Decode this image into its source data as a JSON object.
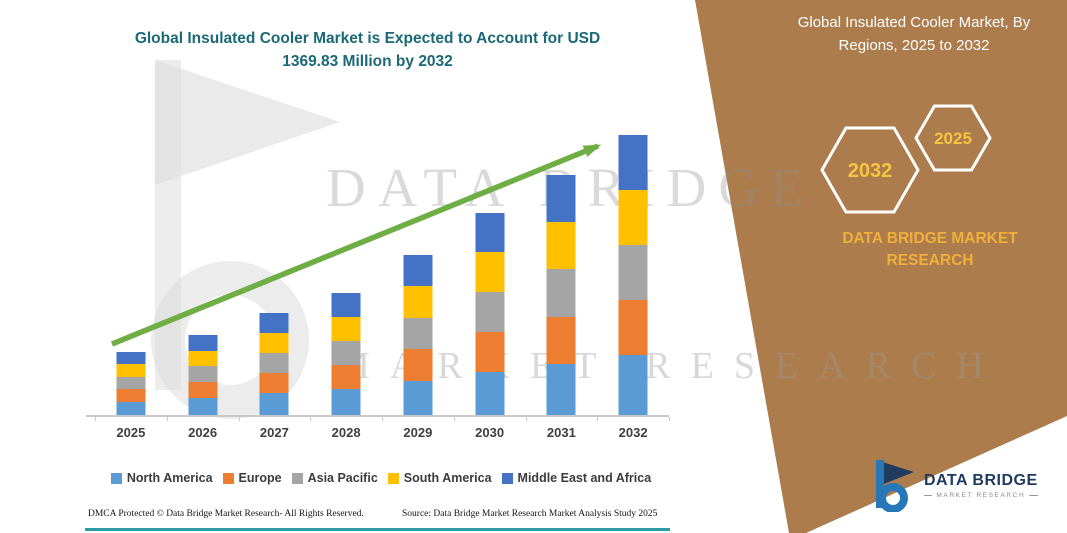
{
  "page": {
    "title": "Global Insulated Cooler Market is Expected to Account for USD 1369.83 Million by 2032"
  },
  "side_panel": {
    "heading": "Global Insulated Cooler Market, By Regions, 2025 to 2032",
    "hexagons": [
      {
        "label": "2032"
      },
      {
        "label": "2025"
      }
    ],
    "brand_text": "DATA BRIDGE MARKET RESEARCH",
    "panel_color": "#ac7c4c",
    "hex_text_color": "#f7c440"
  },
  "watermark": {
    "line1": "DATA BRIDGE",
    "line2": "MARKET RESEARCH"
  },
  "chart_data": {
    "type": "bar",
    "stacked": true,
    "title": "Global Insulated Cooler Market, By Regions, 2025 to 2032",
    "unit": "USD Million",
    "categories": [
      "2025",
      "2026",
      "2027",
      "2028",
      "2029",
      "2030",
      "2031",
      "2032"
    ],
    "series": [
      {
        "name": "North America",
        "color": "#5B9BD5",
        "values": [
          66,
          84,
          107,
          128,
          168,
          211,
          251,
          293.83
        ]
      },
      {
        "name": "Europe",
        "color": "#ED7D31",
        "values": [
          60,
          77,
          98,
          117,
          153,
          194,
          230,
          269
        ]
      },
      {
        "name": "Asia Pacific",
        "color": "#A5A5A5",
        "values": [
          61,
          77,
          99,
          118,
          155,
          196,
          233,
          271
        ]
      },
      {
        "name": "South America",
        "color": "#FFC000",
        "values": [
          60,
          77,
          98,
          117,
          153,
          194,
          230,
          268
        ]
      },
      {
        "name": "Middle East and Africa",
        "color": "#4472C4",
        "values": [
          61,
          76,
          97,
          117,
          154,
          193,
          230,
          268
        ]
      }
    ],
    "totals": [
      308,
      391,
      499,
      597,
      783,
      988,
      1174,
      1369.83
    ],
    "ylim": [
      0,
      1369.83
    ],
    "grid": false,
    "trend_arrow": true,
    "trend_arrow_color": "#6fae44",
    "legend_position": "bottom"
  },
  "footer": {
    "dmca": "DMCA Protected © Data Bridge Market Research-  All Rights Reserved.",
    "source": "Source: Data Bridge Market Research  Market Analysis Study 2025"
  },
  "logo": {
    "name": "DATA BRIDGE",
    "tagline": "MARKET RESEARCH"
  }
}
